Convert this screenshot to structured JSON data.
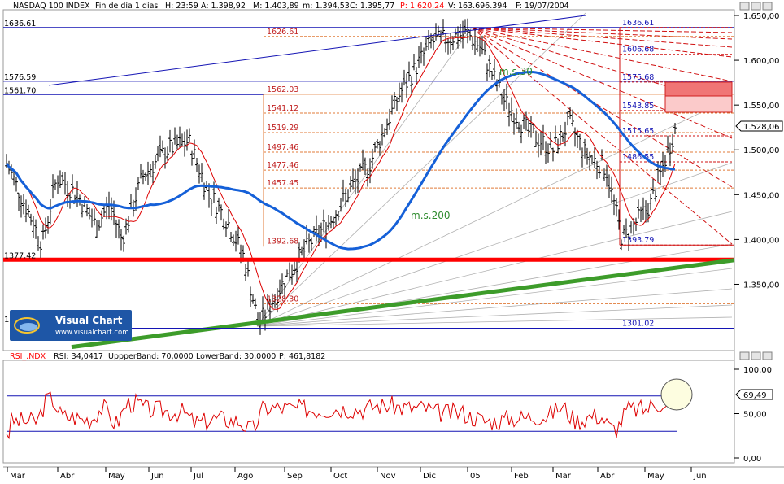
{
  "main_header": {
    "symbol": "NASDAQ 100 INDEX",
    "period": "Fin de día 1 días",
    "time": "H: 23:59",
    "open": "A: 1.398,92",
    "high": "M: 1.403,89",
    "low": "m: 1.394,53",
    "close": "C: 1.395,77",
    "p": "P: 1.620,24",
    "volume": "V: 163.696.394",
    "date": "F: 19/07/2004"
  },
  "rsi_header": {
    "name": "RSI_.NDX",
    "rsi": "RSI: 34,0417",
    "upper": "UppperBand: 70,0000",
    "lower": "LowerBand: 30,0000",
    "p": "P: 461,8182"
  },
  "logo": {
    "brand": "Visual Chart",
    "url": "www.visualchart.com",
    "partial_label": "1"
  },
  "colors": {
    "price_bars": "#000000",
    "ma30": "#dd0000",
    "ma200": "#1560d8",
    "trend_green": "#3d9c2a",
    "support_red": "#ff0000",
    "fib_orange": "#e07b39",
    "fan_gray": "#b0b0b0",
    "rsi_line": "#dd0000",
    "rsi_band": "#1414b4",
    "target_box": "#f28080"
  },
  "chart_data": [
    {
      "type": "candlestick",
      "title": "NASDAQ 100 INDEX",
      "x_labels": [
        "Mar",
        "Abr",
        "May",
        "Jun",
        "Jul",
        "Ago",
        "Sep",
        "Oct",
        "Nov",
        "Dic",
        "05",
        "Feb",
        "Mar",
        "Abr",
        "May",
        "Jun"
      ],
      "y_ticks": [
        "1.650,00",
        "1.600,00",
        "1.550,00",
        "1.500,00",
        "1.450,00",
        "1.400,00",
        "1.350,00"
      ],
      "ylim": [
        1280,
        1655
      ],
      "last_price_label": "1.528,06",
      "price_anchors": [
        [
          "Mar",
          1485
        ],
        [
          "Mar",
          1440
        ],
        [
          "Mar",
          1395
        ],
        [
          "Abr",
          1470
        ],
        [
          "Abr",
          1450
        ],
        [
          "Abr",
          1415
        ],
        [
          "May",
          1440
        ],
        [
          "May",
          1400
        ],
        [
          "Jun",
          1470
        ],
        [
          "Jun",
          1500
        ],
        [
          "Jul",
          1510
        ],
        [
          "Jul",
          1455
        ],
        [
          "Jul",
          1420
        ],
        [
          "Ago",
          1380
        ],
        [
          "Ago",
          1305
        ],
        [
          "Sep",
          1355
        ],
        [
          "Sep",
          1395
        ],
        [
          "Oct",
          1420
        ],
        [
          "Oct",
          1455
        ],
        [
          "Nov",
          1485
        ],
        [
          "Nov",
          1560
        ],
        [
          "Dic",
          1620
        ],
        [
          "Dic",
          1630
        ],
        [
          "05",
          1615
        ],
        [
          "05",
          1555
        ],
        [
          "Feb",
          1520
        ],
        [
          "Feb",
          1500
        ],
        [
          "Mar",
          1530
        ],
        [
          "Mar",
          1495
        ],
        [
          "Abr",
          1480
        ],
        [
          "Abr",
          1400
        ],
        [
          "May",
          1440
        ],
        [
          "May",
          1528
        ]
      ],
      "ma30_label": "m.s.30",
      "ma200_label": "m.s.200",
      "level_labels_left": [
        "1636.61",
        "1576.59",
        "1561.70",
        "1377.42"
      ],
      "fib_levels_mid": [
        "1626.61",
        "1562.03",
        "1541.12",
        "1519.29",
        "1497.46",
        "1477.46",
        "1457.45",
        "1392.68",
        "1328.30"
      ],
      "fib_levels_right": [
        "1636.61",
        "1606.68",
        "1575.68",
        "1543.85",
        "1515.65",
        "1486.55",
        "1393.79",
        "1301.02"
      ],
      "support_level": 1377.42
    },
    {
      "type": "line",
      "title": "RSI_.NDX",
      "y_ticks": [
        "100,00",
        "50,00",
        "0,00"
      ],
      "ylim": [
        0,
        100
      ],
      "upper_band": 70,
      "lower_band": 30,
      "last_value_label": "69,49"
    }
  ]
}
